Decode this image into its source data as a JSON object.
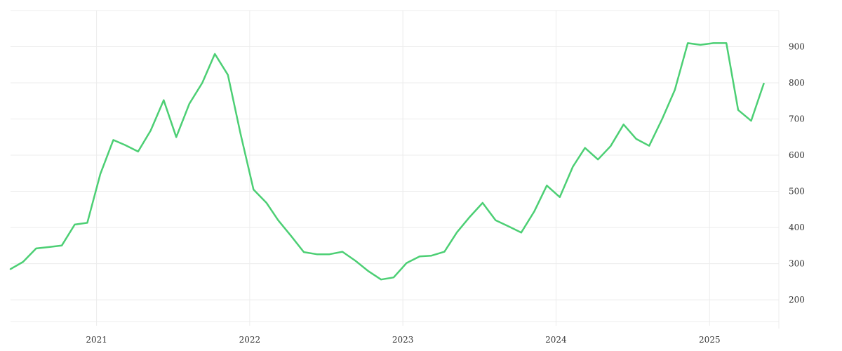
{
  "chart_data": {
    "type": "line",
    "title": "",
    "xlabel": "",
    "ylabel": "",
    "x_ticks": [
      "2021",
      "2022",
      "2023",
      "2024",
      "2025"
    ],
    "y_ticks": [
      200,
      300,
      400,
      500,
      600,
      700,
      800,
      900
    ],
    "ylim": [
      140,
      1000
    ],
    "xlim": [
      "2020-06-10",
      "2025-06-15"
    ],
    "y_axis_position": "right",
    "grid": true,
    "legend": "none",
    "colors": {
      "line": "#4ccf74",
      "grid": "#ececec",
      "tick_text": "#333333"
    },
    "series": [
      {
        "x": [
          "2020-06-10",
          "2020-07-10",
          "2020-08-10",
          "2020-09-10",
          "2020-10-10",
          "2020-11-10",
          "2020-12-10",
          "2021-01-10",
          "2021-02-10",
          "2021-03-10",
          "2021-04-10",
          "2021-05-10",
          "2021-06-10",
          "2021-07-10",
          "2021-08-10",
          "2021-09-10",
          "2021-10-10",
          "2021-11-10",
          "2021-12-10",
          "2022-01-10",
          "2022-02-10",
          "2022-03-10",
          "2022-04-10",
          "2022-05-10",
          "2022-06-10",
          "2022-07-10",
          "2022-08-10",
          "2022-09-10",
          "2022-10-10",
          "2022-11-10",
          "2022-12-10",
          "2023-01-10",
          "2023-02-10",
          "2023-03-10",
          "2023-04-10",
          "2023-05-10",
          "2023-06-10",
          "2023-07-10",
          "2023-08-10",
          "2023-09-10",
          "2023-10-10",
          "2023-11-10",
          "2023-12-10",
          "2024-01-10",
          "2024-02-10",
          "2024-03-10",
          "2024-04-10",
          "2024-05-10",
          "2024-06-10",
          "2024-07-10",
          "2024-08-10",
          "2024-09-10",
          "2024-10-10",
          "2024-11-10",
          "2024-12-10",
          "2025-01-10",
          "2025-02-10",
          "2025-03-10",
          "2025-04-10",
          "2025-05-10"
        ],
        "values": [
          285,
          305,
          342,
          346,
          350,
          408,
          413,
          548,
          642,
          628,
          610,
          668,
          752,
          650,
          742,
          800,
          880,
          822,
          660,
          505,
          468,
          420,
          376,
          332,
          326,
          326,
          333,
          308,
          280,
          256,
          262,
          302,
          320,
          322,
          333,
          387,
          430,
          468,
          420,
          403,
          386,
          444,
          516,
          484,
          568,
          620,
          588,
          625,
          685,
          645,
          626,
          700,
          780,
          910,
          905,
          910,
          910,
          725,
          695,
          798
        ]
      }
    ]
  }
}
